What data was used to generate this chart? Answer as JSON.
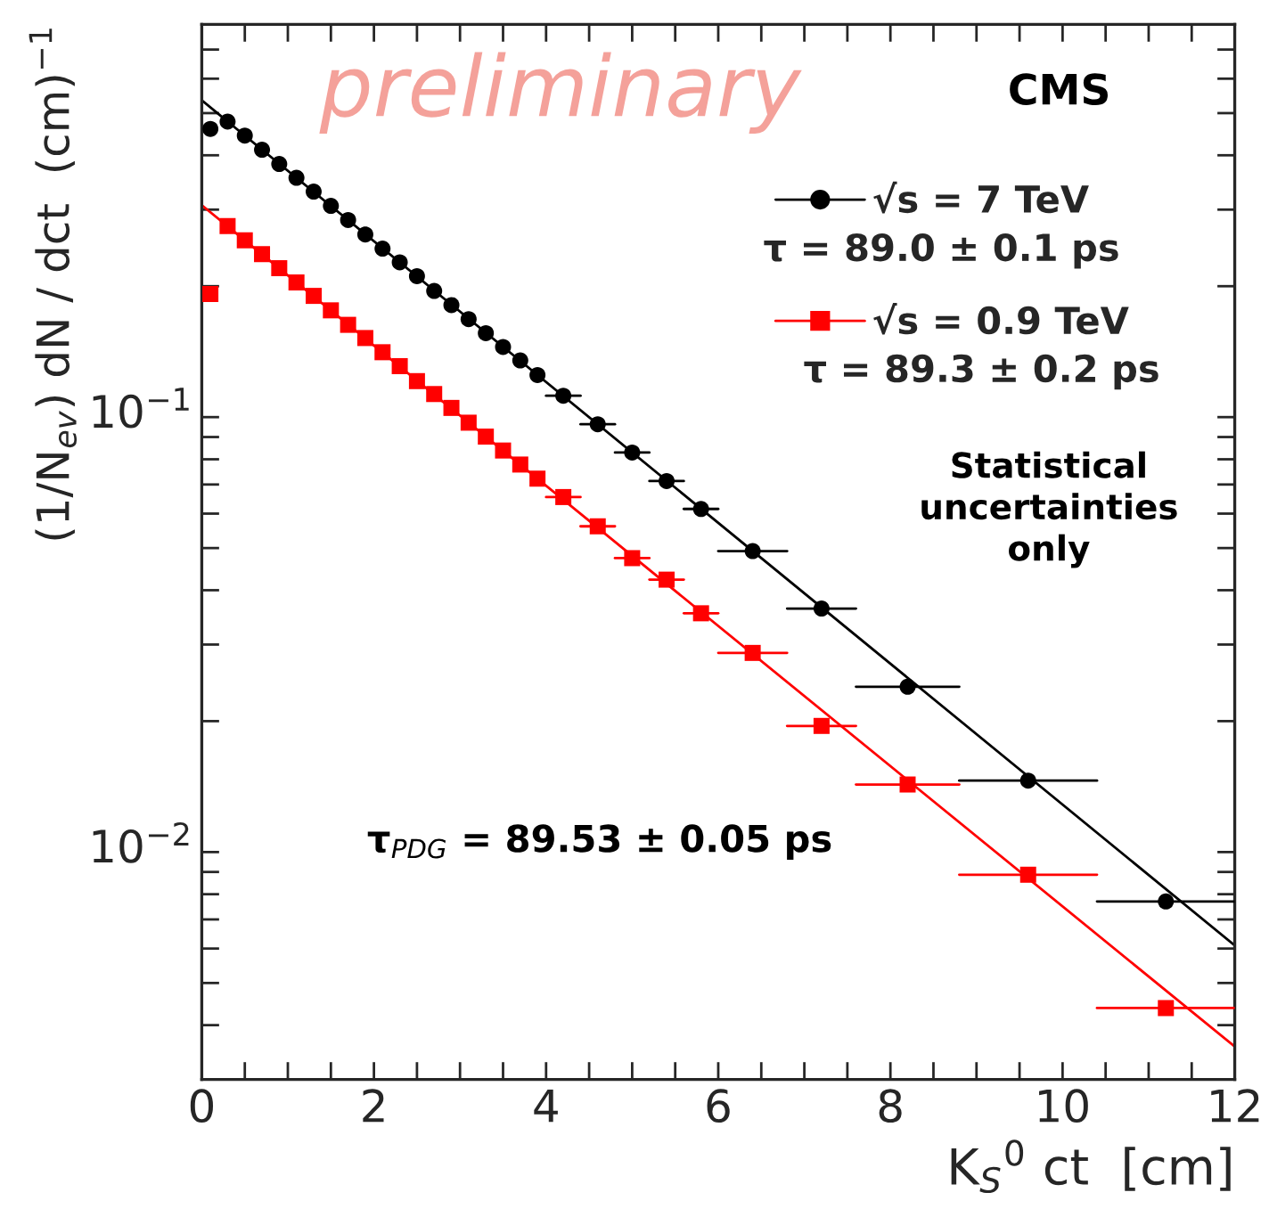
{
  "chart_data": {
    "type": "scatter",
    "xlabel": "K$_{S}$$^{0}$ ct  [cm]",
    "ylabel": "(1/N$_{ev}$) dN / dct  (cm)$^{−1}$",
    "log": "y",
    "xlim": [
      0,
      12
    ],
    "xticks": [
      0,
      {
        "value": 0.5,
        "label": null
      },
      {
        "value": 1,
        "label": null
      },
      {
        "value": 1.5,
        "label": null
      },
      2,
      {
        "value": 2.5,
        "label": null
      },
      {
        "value": 3,
        "label": null
      },
      {
        "value": 3.5,
        "label": null
      },
      4,
      {
        "value": 4.5,
        "label": null
      },
      {
        "value": 5,
        "label": null
      },
      {
        "value": 5.5,
        "label": null
      },
      6,
      {
        "value": 6.5,
        "label": null
      },
      {
        "value": 7,
        "label": null
      },
      {
        "value": 7.5,
        "label": null
      },
      8,
      {
        "value": 8.5,
        "label": null
      },
      {
        "value": 9,
        "label": null
      },
      {
        "value": 9.5,
        "label": null
      },
      10,
      {
        "value": 10.5,
        "label": null
      },
      {
        "value": 11,
        "label": null
      },
      {
        "value": 11.5,
        "label": null
      },
      12
    ],
    "ylim": [
      0.003,
      0.8
    ],
    "yticks": [
      {
        "value": 0.004,
        "label": null
      },
      {
        "value": 0.005,
        "label": null
      },
      {
        "value": 0.006,
        "label": null
      },
      {
        "value": 0.007,
        "label": null
      },
      {
        "value": 0.008,
        "label": null
      },
      {
        "value": 0.009,
        "label": null
      },
      {
        "value": 0.01,
        "label": "10$^{−2}$"
      },
      {
        "value": 0.02,
        "label": null
      },
      {
        "value": 0.03,
        "label": null
      },
      {
        "value": 0.04,
        "label": null
      },
      {
        "value": 0.05,
        "label": null
      },
      {
        "value": 0.06,
        "label": null
      },
      {
        "value": 0.07,
        "label": null
      },
      {
        "value": 0.08,
        "label": null
      },
      {
        "value": 0.09,
        "label": null
      },
      {
        "value": 0.1,
        "label": "10$^{−1}$"
      },
      {
        "value": 0.2,
        "label": null
      },
      {
        "value": 0.3,
        "label": null
      },
      {
        "value": 0.4,
        "label": null
      },
      {
        "value": 0.5,
        "label": null
      },
      {
        "value": 0.6,
        "label": null
      },
      {
        "value": 0.7,
        "label": null
      }
    ],
    "grid": false,
    "legend": "top right",
    "series": [
      {
        "name": "√s = 7 TeV",
        "marker": "circle",
        "color": "#000000",
        "x": [
          0.1,
          0.3,
          0.5,
          0.7,
          0.9,
          1.1,
          1.3,
          1.5,
          1.7,
          1.9,
          2.1,
          2.3,
          2.5,
          2.7,
          2.9,
          3.1,
          3.3,
          3.5,
          3.7,
          3.9,
          4.2,
          4.6,
          5.0,
          5.4,
          5.8,
          6.4,
          7.2,
          8.2,
          9.6,
          11.2
        ],
        "values": [
          0.46,
          0.478,
          0.444,
          0.412,
          0.382,
          0.355,
          0.33,
          0.306,
          0.284,
          0.263,
          0.244,
          0.227,
          0.211,
          0.195,
          0.181,
          0.168,
          0.156,
          0.145,
          0.135,
          0.125,
          0.112,
          0.0963,
          0.0829,
          0.0713,
          0.0615,
          0.0492,
          0.0363,
          0.024,
          0.0146,
          0.0077
        ],
        "xerrors": [
          null,
          null,
          null,
          null,
          null,
          null,
          null,
          null,
          null,
          null,
          null,
          null,
          null,
          null,
          null,
          null,
          null,
          null,
          null,
          null,
          0.2,
          0.2,
          0.2,
          0.2,
          0.2,
          0.4,
          0.4,
          0.6,
          0.8,
          0.8
        ]
      },
      {
        "name": "√s = 0.9 TeV",
        "marker": "square",
        "color": "#ff0000",
        "x": [
          0.1,
          0.3,
          0.5,
          0.7,
          0.9,
          1.1,
          1.3,
          1.5,
          1.7,
          1.9,
          2.1,
          2.3,
          2.5,
          2.7,
          2.9,
          3.1,
          3.3,
          3.5,
          3.7,
          3.9,
          4.2,
          4.6,
          5.0,
          5.4,
          5.8,
          6.4,
          7.2,
          8.2,
          9.6,
          11.2
        ],
        "values": [
          0.192,
          0.275,
          0.255,
          0.237,
          0.22,
          0.204,
          0.19,
          0.176,
          0.163,
          0.152,
          0.141,
          0.131,
          0.121,
          0.113,
          0.105,
          0.0971,
          0.0902,
          0.0838,
          0.0778,
          0.0722,
          0.0655,
          0.0561,
          0.0474,
          0.0423,
          0.0354,
          0.0287,
          0.0195,
          0.0143,
          0.00887,
          0.00438
        ],
        "xerrors": [
          null,
          null,
          null,
          null,
          null,
          null,
          null,
          null,
          null,
          null,
          null,
          null,
          null,
          null,
          null,
          null,
          null,
          null,
          null,
          null,
          0.2,
          0.2,
          0.2,
          0.2,
          0.2,
          0.4,
          0.4,
          0.6,
          0.8,
          0.8
        ]
      },
      {
        "type": "line",
        "marker": "none",
        "color": "#000000",
        "x": [
          0,
          12
        ],
        "values": [
          0.535,
          0.0061
        ]
      },
      {
        "type": "line",
        "marker": "none",
        "color": "#ff0000",
        "x": [
          0,
          12
        ],
        "values": [
          0.307,
          0.00357
        ]
      }
    ],
    "annotations": [
      "preliminary",
      "CMS",
      "τ = 89.0 ± 0.1 ps",
      "τ = 89.3 ± 0.2 ps",
      "Statistical\nuncertainties\nonly",
      "τ$_{PDG}$ = 89.53 ± 0.05 ps"
    ]
  }
}
